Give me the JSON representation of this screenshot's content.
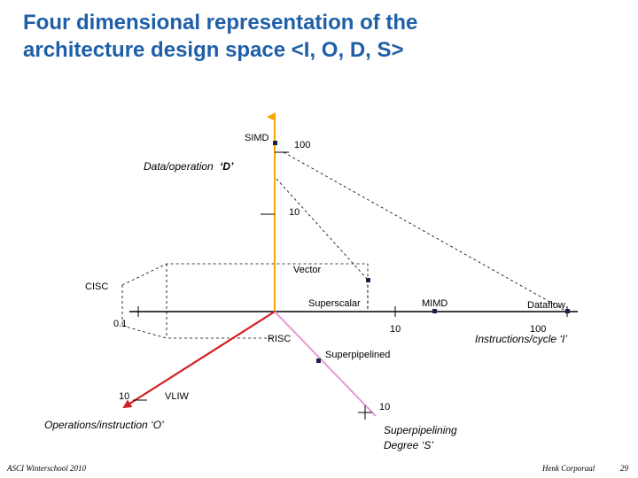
{
  "title_line1": "Four dimensional representation of the",
  "title_line2": "architecture design space <I, O, D, S>",
  "axes": {
    "d": {
      "label_main": "Data/operation ",
      "label_sym": "‘D’",
      "tick_top": "100",
      "tick_mid": "10",
      "color": "#f5a800"
    },
    "i": {
      "label": "Instructions/cycle ‘I’",
      "tick_near": "10",
      "tick_far": "100",
      "color": "#000000"
    },
    "o": {
      "label": "Operations/instruction ‘O’",
      "tick": "10",
      "color": "#d21e1e"
    },
    "s": {
      "label_line1": "Superpipelining",
      "label_line2": "Degree ‘S’",
      "tick": "10",
      "color": "#e79ad4"
    }
  },
  "left_tick": "0.1",
  "points": {
    "simd": "SIMD",
    "vector": "Vector",
    "cisc": "CISC",
    "superscalar": "Superscalar",
    "mimd": "MIMD",
    "dataflow": "Dataflow",
    "risc": "RISC",
    "superpipelined": "Superpipelined",
    "vliw": "VLIW"
  },
  "footer": {
    "left": "ASCI Winterschool 2010",
    "right": "Henk Corporaal",
    "page": "29"
  }
}
